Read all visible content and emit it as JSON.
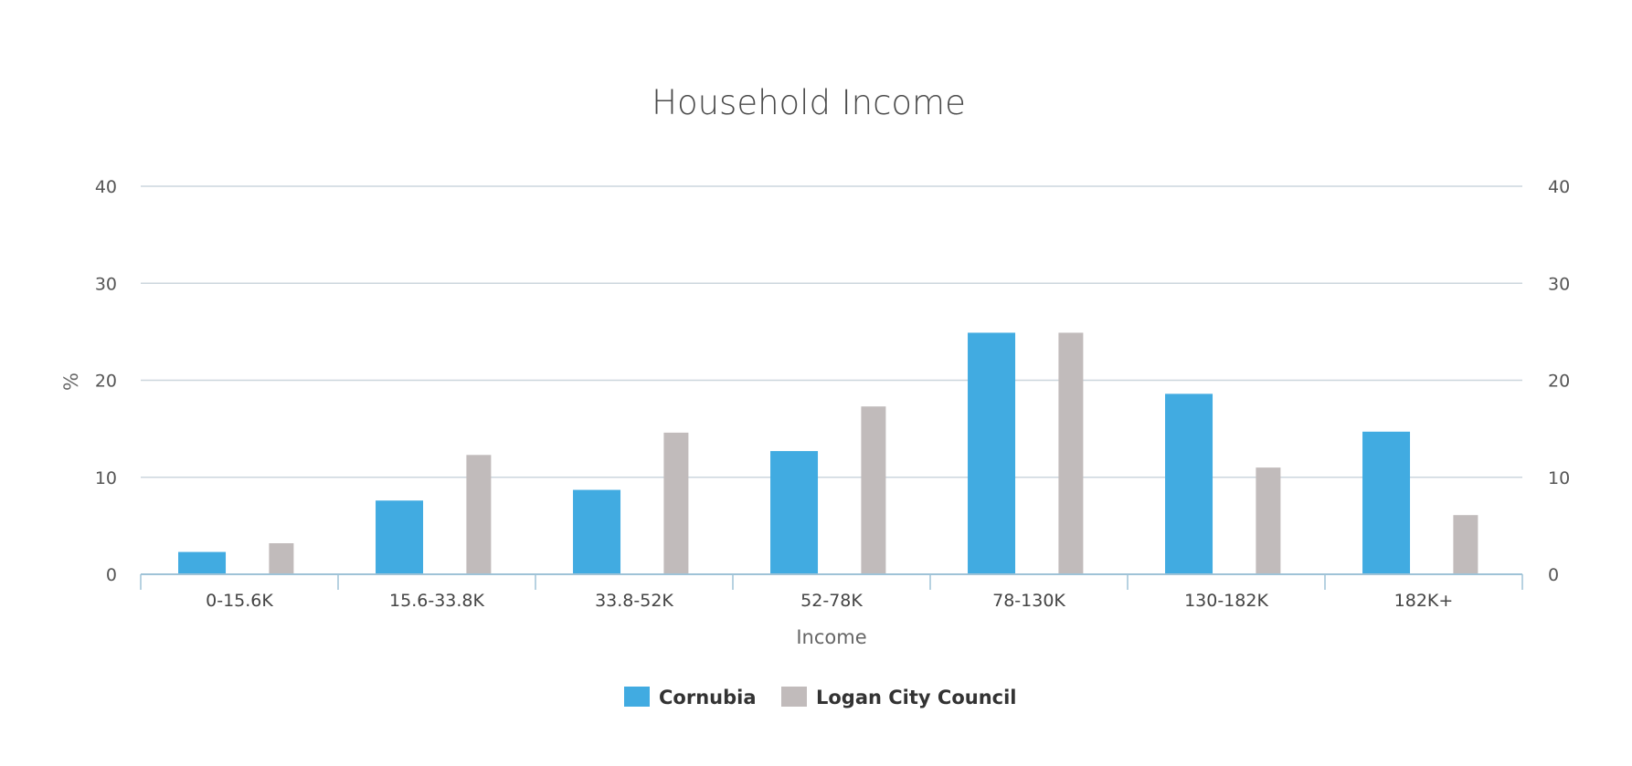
{
  "chart_data": {
    "type": "bar",
    "title": "Household Income",
    "xlabel": "Income",
    "ylabel": "%",
    "ylim": [
      0,
      40
    ],
    "yticks": [
      0,
      10,
      20,
      30,
      40
    ],
    "secondary_y_axis": true,
    "grid": true,
    "legend_position": "bottom",
    "categories": [
      "0-15.6K",
      "15.6-33.8K",
      "33.8-52K",
      "52-78K",
      "78-130K",
      "130-182K",
      "182K+"
    ],
    "series": [
      {
        "name": "Cornubia",
        "color": "#41abe1",
        "values": [
          2.3,
          7.6,
          8.7,
          12.7,
          24.9,
          18.6,
          14.7
        ]
      },
      {
        "name": "Logan City Council",
        "color": "#c1bbbb",
        "values": [
          3.2,
          12.3,
          14.6,
          17.3,
          24.9,
          11.0,
          6.1
        ]
      }
    ]
  }
}
